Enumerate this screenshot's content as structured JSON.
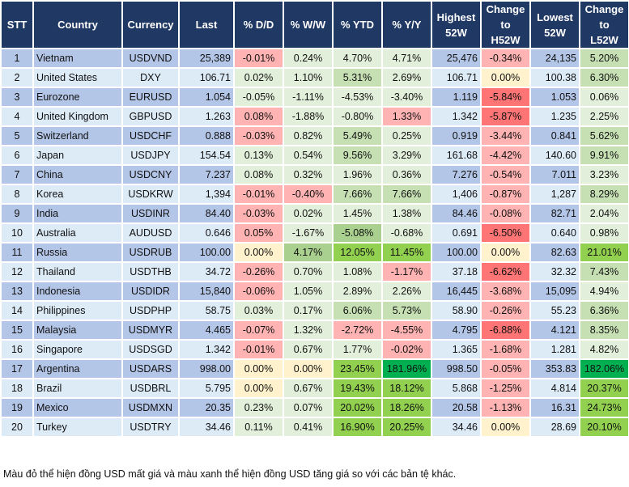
{
  "palette": {
    "lg": "#e2efda",
    "mg": "#c6e0b4",
    "g2": "#a9d08e",
    "g": "#92d050",
    "dg": "#00b050",
    "pk": "#ffb3b3",
    "r": "#ff7575",
    "y": "#fff2cc"
  },
  "headers": [
    "STT",
    "Country",
    "Currency",
    "Last",
    "% D/D",
    "% W/W",
    "% YTD",
    "% Y/Y",
    "Highest\n52W",
    "Change\nto\nH52W",
    "Lowest\n52W",
    "Change\nto\nL52W"
  ],
  "rows": [
    {
      "stt": "1",
      "country": "Vietnam",
      "currency": "USDVND",
      "last": "25,389",
      "dd": [
        "-0.01%",
        "pk"
      ],
      "ww": [
        "0.24%",
        "lg"
      ],
      "ytd": [
        "4.70%",
        "lg"
      ],
      "yy": [
        "4.71%",
        "lg"
      ],
      "high": "25,476",
      "ch": [
        "-0.34%",
        "pk"
      ],
      "low": "24,135",
      "cl": [
        "5.20%",
        "mg"
      ]
    },
    {
      "stt": "2",
      "country": "United States",
      "currency": "DXY",
      "last": "106.71",
      "dd": [
        "0.02%",
        "lg"
      ],
      "ww": [
        "1.10%",
        "lg"
      ],
      "ytd": [
        "5.31%",
        "mg"
      ],
      "yy": [
        "2.69%",
        "lg"
      ],
      "high": "106.71",
      "ch": [
        "0.00%",
        "y"
      ],
      "low": "100.38",
      "cl": [
        "6.30%",
        "mg"
      ]
    },
    {
      "stt": "3",
      "country": "Eurozone",
      "currency": "EURUSD",
      "last": "1.054",
      "dd": [
        "-0.05%",
        "lg"
      ],
      "ww": [
        "-1.11%",
        "lg"
      ],
      "ytd": [
        "-4.53%",
        "lg"
      ],
      "yy": [
        "-3.40%",
        "lg"
      ],
      "high": "1.119",
      "ch": [
        "-5.84%",
        "r"
      ],
      "low": "1.053",
      "cl": [
        "0.06%",
        "lg"
      ]
    },
    {
      "stt": "4",
      "country": "United Kingdom",
      "currency": "GBPUSD",
      "last": "1.263",
      "dd": [
        "0.08%",
        "pk"
      ],
      "ww": [
        "-1.88%",
        "lg"
      ],
      "ytd": [
        "-0.80%",
        "lg"
      ],
      "yy": [
        "1.33%",
        "pk"
      ],
      "high": "1.342",
      "ch": [
        "-5.87%",
        "r"
      ],
      "low": "1.235",
      "cl": [
        "2.25%",
        "lg"
      ]
    },
    {
      "stt": "5",
      "country": "Switzerland",
      "currency": "USDCHF",
      "last": "0.888",
      "dd": [
        "-0.03%",
        "pk"
      ],
      "ww": [
        "0.82%",
        "lg"
      ],
      "ytd": [
        "5.49%",
        "mg"
      ],
      "yy": [
        "0.25%",
        "lg"
      ],
      "high": "0.919",
      "ch": [
        "-3.44%",
        "pk"
      ],
      "low": "0.841",
      "cl": [
        "5.62%",
        "mg"
      ]
    },
    {
      "stt": "6",
      "country": "Japan",
      "currency": "USDJPY",
      "last": "154.54",
      "dd": [
        "0.13%",
        "lg"
      ],
      "ww": [
        "0.54%",
        "lg"
      ],
      "ytd": [
        "9.56%",
        "mg"
      ],
      "yy": [
        "3.29%",
        "lg"
      ],
      "high": "161.68",
      "ch": [
        "-4.42%",
        "pk"
      ],
      "low": "140.60",
      "cl": [
        "9.91%",
        "mg"
      ]
    },
    {
      "stt": "7",
      "country": "China",
      "currency": "USDCNY",
      "last": "7.237",
      "dd": [
        "0.08%",
        "lg"
      ],
      "ww": [
        "0.32%",
        "lg"
      ],
      "ytd": [
        "1.96%",
        "lg"
      ],
      "yy": [
        "0.36%",
        "lg"
      ],
      "high": "7.276",
      "ch": [
        "-0.54%",
        "pk"
      ],
      "low": "7.011",
      "cl": [
        "3.23%",
        "lg"
      ]
    },
    {
      "stt": "8",
      "country": "Korea",
      "currency": "USDKRW",
      "last": "1,394",
      "dd": [
        "-0.01%",
        "pk"
      ],
      "ww": [
        "-0.40%",
        "pk"
      ],
      "ytd": [
        "7.66%",
        "mg"
      ],
      "yy": [
        "7.66%",
        "mg"
      ],
      "high": "1,406",
      "ch": [
        "-0.87%",
        "pk"
      ],
      "low": "1,287",
      "cl": [
        "8.29%",
        "mg"
      ]
    },
    {
      "stt": "9",
      "country": "India",
      "currency": "USDINR",
      "last": "84.40",
      "dd": [
        "-0.03%",
        "pk"
      ],
      "ww": [
        "0.02%",
        "lg"
      ],
      "ytd": [
        "1.45%",
        "lg"
      ],
      "yy": [
        "1.38%",
        "lg"
      ],
      "high": "84.46",
      "ch": [
        "-0.08%",
        "pk"
      ],
      "low": "82.71",
      "cl": [
        "2.04%",
        "lg"
      ]
    },
    {
      "stt": "10",
      "country": "Australia",
      "currency": "AUDUSD",
      "last": "0.646",
      "dd": [
        "0.05%",
        "pk"
      ],
      "ww": [
        "-1.67%",
        "lg"
      ],
      "ytd": [
        "-5.08%",
        "g2"
      ],
      "yy": [
        "-0.68%",
        "lg"
      ],
      "high": "0.691",
      "ch": [
        "-6.50%",
        "r"
      ],
      "low": "0.640",
      "cl": [
        "0.98%",
        "lg"
      ]
    },
    {
      "stt": "11",
      "country": "Russia",
      "currency": "USDRUB",
      "last": "100.00",
      "dd": [
        "0.00%",
        "y"
      ],
      "ww": [
        "4.17%",
        "g2"
      ],
      "ytd": [
        "12.05%",
        "g"
      ],
      "yy": [
        "11.45%",
        "g"
      ],
      "high": "100.00",
      "ch": [
        "0.00%",
        "y"
      ],
      "low": "82.63",
      "cl": [
        "21.01%",
        "g"
      ]
    },
    {
      "stt": "12",
      "country": "Thailand",
      "currency": "USDTHB",
      "last": "34.72",
      "dd": [
        "-0.26%",
        "pk"
      ],
      "ww": [
        "0.70%",
        "lg"
      ],
      "ytd": [
        "1.08%",
        "lg"
      ],
      "yy": [
        "-1.17%",
        "pk"
      ],
      "high": "37.18",
      "ch": [
        "-6.62%",
        "r"
      ],
      "low": "32.32",
      "cl": [
        "7.43%",
        "mg"
      ]
    },
    {
      "stt": "13",
      "country": "Indonesia",
      "currency": "USDIDR",
      "last": "15,840",
      "dd": [
        "-0.06%",
        "pk"
      ],
      "ww": [
        "1.05%",
        "lg"
      ],
      "ytd": [
        "2.89%",
        "lg"
      ],
      "yy": [
        "2.26%",
        "lg"
      ],
      "high": "16,445",
      "ch": [
        "-3.68%",
        "pk"
      ],
      "low": "15,095",
      "cl": [
        "4.94%",
        "lg"
      ]
    },
    {
      "stt": "14",
      "country": "Philippines",
      "currency": "USDPHP",
      "last": "58.75",
      "dd": [
        "0.03%",
        "lg"
      ],
      "ww": [
        "0.17%",
        "lg"
      ],
      "ytd": [
        "6.06%",
        "mg"
      ],
      "yy": [
        "5.73%",
        "mg"
      ],
      "high": "58.90",
      "ch": [
        "-0.26%",
        "pk"
      ],
      "low": "55.23",
      "cl": [
        "6.36%",
        "mg"
      ]
    },
    {
      "stt": "15",
      "country": "Malaysia",
      "currency": "USDMYR",
      "last": "4.465",
      "dd": [
        "-0.07%",
        "pk"
      ],
      "ww": [
        "1.32%",
        "lg"
      ],
      "ytd": [
        "-2.72%",
        "pk"
      ],
      "yy": [
        "-4.55%",
        "pk"
      ],
      "high": "4.795",
      "ch": [
        "-6.88%",
        "r"
      ],
      "low": "4.121",
      "cl": [
        "8.35%",
        "mg"
      ]
    },
    {
      "stt": "16",
      "country": "Singapore",
      "currency": "USDSGD",
      "last": "1.342",
      "dd": [
        "-0.01%",
        "pk"
      ],
      "ww": [
        "0.67%",
        "lg"
      ],
      "ytd": [
        "1.77%",
        "lg"
      ],
      "yy": [
        "-0.02%",
        "pk"
      ],
      "high": "1.365",
      "ch": [
        "-1.68%",
        "pk"
      ],
      "low": "1.281",
      "cl": [
        "4.82%",
        "lg"
      ]
    },
    {
      "stt": "17",
      "country": "Argentina",
      "currency": "USDARS",
      "last": "998.00",
      "dd": [
        "0.00%",
        "y"
      ],
      "ww": [
        "0.00%",
        "y"
      ],
      "ytd": [
        "23.45%",
        "g"
      ],
      "yy": [
        "181.96%",
        "dg"
      ],
      "high": "998.50",
      "ch": [
        "-0.05%",
        "pk"
      ],
      "low": "353.83",
      "cl": [
        "182.06%",
        "dg"
      ]
    },
    {
      "stt": "18",
      "country": "Brazil",
      "currency": "USDBRL",
      "last": "5.795",
      "dd": [
        "0.00%",
        "y"
      ],
      "ww": [
        "0.67%",
        "lg"
      ],
      "ytd": [
        "19.43%",
        "g"
      ],
      "yy": [
        "18.12%",
        "g"
      ],
      "high": "5.868",
      "ch": [
        "-1.25%",
        "pk"
      ],
      "low": "4.814",
      "cl": [
        "20.37%",
        "g"
      ]
    },
    {
      "stt": "19",
      "country": "Mexico",
      "currency": "USDMXN",
      "last": "20.35",
      "dd": [
        "0.23%",
        "lg"
      ],
      "ww": [
        "0.07%",
        "lg"
      ],
      "ytd": [
        "20.02%",
        "g"
      ],
      "yy": [
        "18.26%",
        "g"
      ],
      "high": "20.58",
      "ch": [
        "-1.13%",
        "pk"
      ],
      "low": "16.31",
      "cl": [
        "24.73%",
        "g"
      ]
    },
    {
      "stt": "20",
      "country": "Turkey",
      "currency": "USDTRY",
      "last": "34.46",
      "dd": [
        "0.11%",
        "lg"
      ],
      "ww": [
        "0.41%",
        "lg"
      ],
      "ytd": [
        "16.90%",
        "g"
      ],
      "yy": [
        "20.25%",
        "g"
      ],
      "high": "34.46",
      "ch": [
        "0.00%",
        "y"
      ],
      "low": "28.69",
      "cl": [
        "20.10%",
        "g"
      ]
    }
  ],
  "footnote": "Màu đỏ thể hiện đồng USD mất giá và màu xanh thể hiện đồng USD tăng giá so với các bản tệ khác."
}
